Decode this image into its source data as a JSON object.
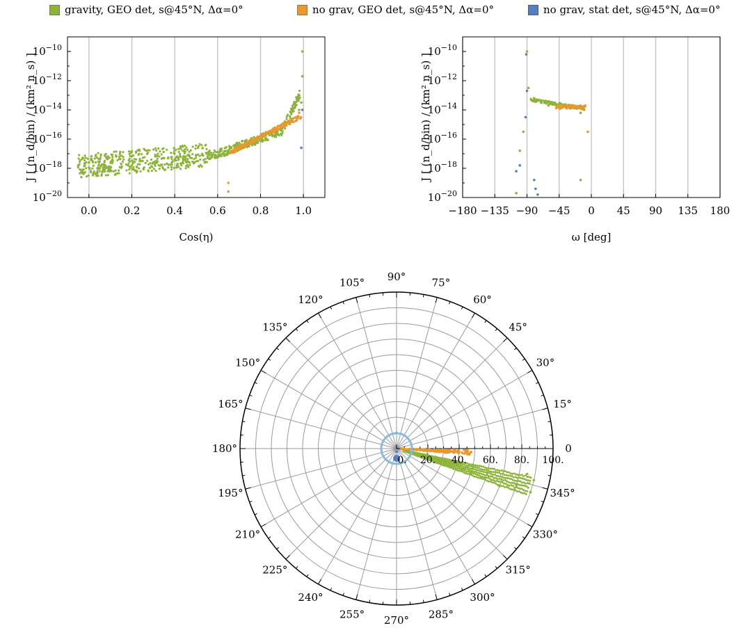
{
  "legend": [
    {
      "label": "gravity, GEO det, s@45°N, Δα=0°",
      "color": "#8db33a"
    },
    {
      "label": "no grav, GEO det, s@45°N, Δα=0°",
      "color": "#e8982e"
    },
    {
      "label": "no grav, stat det, s@45°N, Δα=0°",
      "color": "#5580c0"
    }
  ],
  "chart_data": [
    {
      "type": "scatter",
      "xlabel": "Cos(η)",
      "ylabel": "J",
      "ylabel_unit": "[ (n_d/bin) / (km² n_s) ]",
      "xlim": [
        -0.1,
        1.1
      ],
      "ylim_exp": [
        -20,
        -9
      ],
      "y_scale": "log",
      "x_ticks": [
        "0.0",
        "0.2",
        "0.4",
        "0.6",
        "0.8",
        "1.0"
      ],
      "x_tick_values": [
        0.0,
        0.2,
        0.4,
        0.6,
        0.8,
        1.0
      ],
      "y_tick_exponents": [
        -10,
        -12,
        -14,
        -16,
        -18,
        -20
      ],
      "grid": "vertical",
      "series": [
        {
          "name": "gravity, GEO det, s@45°N, Δα=0°",
          "color": "#8db33a",
          "points": [
            [
              -0.05,
              -17.8
            ],
            [
              -0.03,
              -18.3
            ],
            [
              0.0,
              -17.6
            ],
            [
              0.05,
              -18.0
            ],
            [
              0.1,
              -17.9
            ],
            [
              0.15,
              -17.7
            ],
            [
              0.2,
              -17.8
            ],
            [
              0.25,
              -17.5
            ],
            [
              0.3,
              -17.6
            ],
            [
              0.35,
              -17.3
            ],
            [
              0.4,
              -17.4
            ],
            [
              0.45,
              -17.2
            ],
            [
              0.5,
              -17.1
            ],
            [
              0.55,
              -17.0
            ],
            [
              0.6,
              -16.9
            ],
            [
              0.65,
              -16.8
            ],
            [
              0.7,
              -16.6
            ],
            [
              0.75,
              -16.3
            ],
            [
              0.8,
              -16.0
            ],
            [
              0.85,
              -15.6
            ],
            [
              0.9,
              -15.2
            ],
            [
              0.95,
              -14.6
            ],
            [
              0.98,
              -14.0
            ],
            [
              0.99,
              -13.5
            ],
            [
              0.995,
              -10.0
            ],
            [
              0.995,
              -11.7
            ]
          ]
        },
        {
          "name": "no grav, GEO det, s@45°N, Δα=0°",
          "color": "#e8982e",
          "points": [
            [
              0.65,
              -16.9
            ],
            [
              0.7,
              -16.6
            ],
            [
              0.75,
              -16.2
            ],
            [
              0.8,
              -15.8
            ],
            [
              0.85,
              -15.4
            ],
            [
              0.9,
              -15.0
            ],
            [
              0.95,
              -14.6
            ],
            [
              0.98,
              -14.2
            ],
            [
              0.65,
              -19.0
            ],
            [
              0.65,
              -19.6
            ]
          ]
        },
        {
          "name": "no grav, stat det, s@45°N, Δα=0°",
          "color": "#5580c0",
          "points": [
            [
              0.995,
              -14.0
            ],
            [
              0.99,
              -16.6
            ]
          ]
        }
      ]
    },
    {
      "type": "scatter",
      "xlabel": "ω [deg]",
      "ylabel": "J",
      "ylabel_unit": "[ (n_d/bin) / (km² n_s) ]",
      "xlim": [
        -180,
        180
      ],
      "ylim_exp": [
        -20,
        -9
      ],
      "y_scale": "log",
      "x_ticks": [
        "−180",
        "−135",
        "−90",
        "−45",
        "0",
        "45",
        "90",
        "135",
        "180"
      ],
      "x_tick_values": [
        -180,
        -135,
        -90,
        -45,
        0,
        45,
        90,
        135,
        180
      ],
      "y_tick_exponents": [
        -10,
        -12,
        -14,
        -16,
        -18,
        -20
      ],
      "grid": "vertical",
      "series": [
        {
          "name": "gravity, GEO det, s@45°N, Δα=0°",
          "color": "#8db33a",
          "points": [
            [
              -90,
              -10.0
            ],
            [
              -88,
              -12.5
            ],
            [
              -80,
              -13.2
            ],
            [
              -70,
              -13.5
            ],
            [
              -60,
              -13.7
            ],
            [
              -45,
              -13.8
            ],
            [
              -30,
              -13.9
            ],
            [
              -20,
              -13.9
            ],
            [
              -15,
              -14.2
            ],
            [
              -15,
              -18.8
            ],
            [
              -105,
              -19.7
            ],
            [
              -100,
              -16.8
            ],
            [
              -95,
              -15.5
            ]
          ]
        },
        {
          "name": "no grav, GEO det, s@45°N, Δα=0°",
          "color": "#e8982e",
          "points": [
            [
              -45,
              -13.8
            ],
            [
              -30,
              -13.8
            ],
            [
              -20,
              -13.8
            ],
            [
              -10,
              -14.0
            ],
            [
              -5,
              -15.5
            ]
          ]
        },
        {
          "name": "no grav, stat det, s@45°N, Δα=0°",
          "color": "#5580c0",
          "points": [
            [
              -91,
              -10.2
            ],
            [
              -90,
              -12.7
            ],
            [
              -92,
              -14.5
            ],
            [
              -100,
              -17.8
            ],
            [
              -105,
              -18.2
            ],
            [
              -80,
              -18.8
            ],
            [
              -75,
              -19.8
            ],
            [
              -78,
              -19.4
            ]
          ]
        }
      ]
    },
    {
      "type": "polar",
      "r_ticks": [
        "0.",
        "20.",
        "40.",
        "60.",
        "80.",
        "100."
      ],
      "r_tick_values": [
        0,
        20,
        40,
        60,
        80,
        100
      ],
      "rlim": [
        0,
        100
      ],
      "theta_labels": [
        "0",
        "15°",
        "30°",
        "45°",
        "60°",
        "75°",
        "90°",
        "105°",
        "120°",
        "135°",
        "150°",
        "165°",
        "180°",
        "195°",
        "210°",
        "225°",
        "240°",
        "255°",
        "270°",
        "285°",
        "300°",
        "315°",
        "330°",
        "345°"
      ],
      "series": [
        {
          "name": "gravity, GEO det, s@45°N, Δα=0°",
          "color": "#8db33a",
          "points": [
            [
              350,
              20
            ],
            [
              347,
              40
            ],
            [
              345,
              60
            ],
            [
              343,
              80
            ],
            [
              342,
              90
            ],
            [
              347,
              90
            ],
            [
              349,
              85
            ],
            [
              340,
              70
            ]
          ]
        },
        {
          "name": "no grav, GEO det, s@45°N, Δα=0°",
          "color": "#e8982e",
          "points": [
            [
              357,
              20
            ],
            [
              358,
              40
            ],
            [
              357,
              45
            ],
            [
              356,
              30
            ]
          ]
        },
        {
          "name": "no grav, stat det, s@45°N, Δα=0°",
          "color": "#5580c0",
          "points": [
            [
              0,
              10
            ],
            [
              270,
              2
            ],
            [
              90,
              10
            ]
          ]
        }
      ]
    }
  ]
}
